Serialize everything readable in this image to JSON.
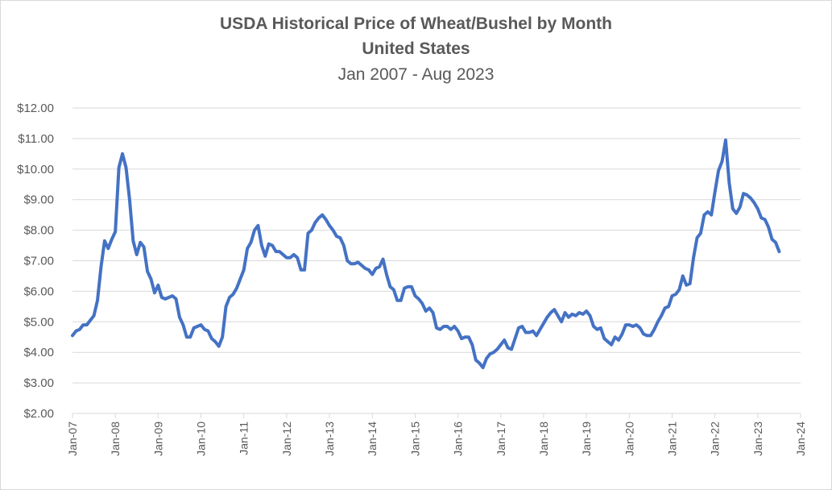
{
  "chart_data": {
    "type": "line",
    "title": "USDA Historical Price of Wheat/Bushel by Month",
    "subtitle": "United States",
    "subtitle2": "Jan 2007 - Aug 2023",
    "xlabel": "",
    "ylabel": "",
    "ylim": [
      2,
      12
    ],
    "xlim": [
      "Jan-07",
      "Jan-24"
    ],
    "grid": true,
    "line_color": "#4472C4",
    "grid_color": "#d9d9d9",
    "y_ticks": [
      "$2.00",
      "$3.00",
      "$4.00",
      "$5.00",
      "$6.00",
      "$7.00",
      "$8.00",
      "$9.00",
      "$10.00",
      "$11.00",
      "$12.00"
    ],
    "x_ticks": [
      "Jan-07",
      "Jan-08",
      "Jan-09",
      "Jan-10",
      "Jan-11",
      "Jan-12",
      "Jan-13",
      "Jan-14",
      "Jan-15",
      "Jan-16",
      "Jan-17",
      "Jan-18",
      "Jan-19",
      "Jan-20",
      "Jan-21",
      "Jan-22",
      "Jan-23",
      "Jan-24"
    ],
    "series": [
      {
        "name": "Price of Wheat/Bushel",
        "start": "Jan-07",
        "values": [
          4.55,
          4.7,
          4.75,
          4.9,
          4.9,
          5.05,
          5.2,
          5.7,
          6.8,
          7.65,
          7.4,
          7.7,
          7.95,
          10.05,
          10.5,
          10.05,
          9.0,
          7.65,
          7.2,
          7.6,
          7.45,
          6.65,
          6.4,
          5.95,
          6.2,
          5.8,
          5.75,
          5.8,
          5.85,
          5.75,
          5.15,
          4.9,
          4.5,
          4.5,
          4.8,
          4.85,
          4.9,
          4.75,
          4.7,
          4.45,
          4.35,
          4.2,
          4.5,
          5.5,
          5.8,
          5.9,
          6.1,
          6.4,
          6.7,
          7.4,
          7.6,
          8.0,
          8.15,
          7.5,
          7.15,
          7.55,
          7.5,
          7.3,
          7.3,
          7.2,
          7.1,
          7.1,
          7.2,
          7.1,
          6.7,
          6.7,
          7.9,
          8.0,
          8.25,
          8.4,
          8.5,
          8.35,
          8.15,
          8.0,
          7.8,
          7.75,
          7.5,
          7.0,
          6.9,
          6.9,
          6.95,
          6.85,
          6.75,
          6.7,
          6.55,
          6.75,
          6.8,
          7.05,
          6.55,
          6.15,
          6.05,
          5.7,
          5.7,
          6.1,
          6.15,
          6.15,
          5.85,
          5.75,
          5.6,
          5.35,
          5.45,
          5.3,
          4.8,
          4.75,
          4.85,
          4.85,
          4.75,
          4.85,
          4.7,
          4.45,
          4.5,
          4.5,
          4.25,
          3.75,
          3.65,
          3.5,
          3.8,
          3.95,
          4.0,
          4.1,
          4.25,
          4.4,
          4.15,
          4.1,
          4.45,
          4.8,
          4.85,
          4.65,
          4.65,
          4.7,
          4.55,
          4.75,
          4.95,
          5.15,
          5.3,
          5.4,
          5.2,
          5.0,
          5.3,
          5.15,
          5.25,
          5.2,
          5.3,
          5.25,
          5.35,
          5.2,
          4.85,
          4.75,
          4.8,
          4.45,
          4.35,
          4.25,
          4.5,
          4.4,
          4.6,
          4.9,
          4.9,
          4.85,
          4.9,
          4.8,
          4.6,
          4.55,
          4.55,
          4.75,
          5.0,
          5.2,
          5.45,
          5.5,
          5.85,
          5.9,
          6.05,
          6.5,
          6.2,
          6.25,
          7.1,
          7.75,
          7.9,
          8.5,
          8.6,
          8.5,
          9.25,
          9.95,
          10.25,
          10.95,
          9.55,
          8.7,
          8.55,
          8.75,
          9.2,
          9.15,
          9.05,
          8.9,
          8.7,
          8.4,
          8.35,
          8.1,
          7.7,
          7.6,
          7.3
        ]
      }
    ]
  }
}
